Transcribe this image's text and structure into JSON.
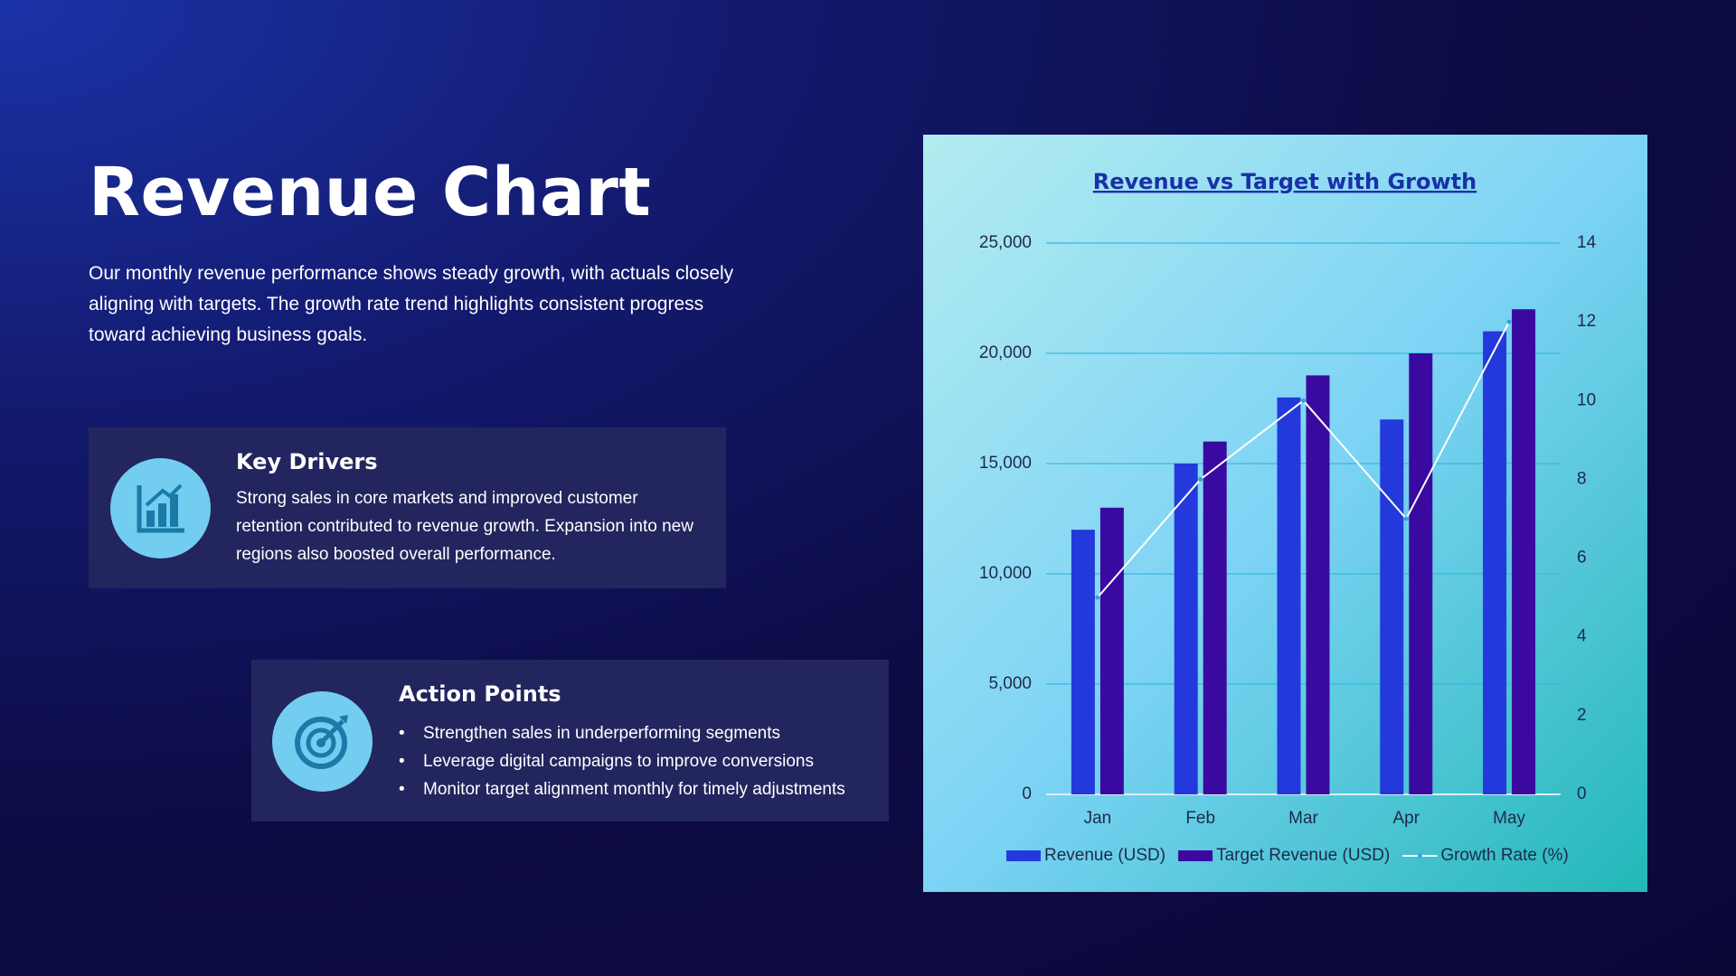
{
  "header": {
    "title": "Revenue Chart",
    "description": "Our monthly revenue performance shows steady growth, with actuals closely aligning with targets. The growth rate trend highlights consistent progress toward achieving business goals."
  },
  "cards": [
    {
      "title": "Key Drivers",
      "text": "Strong sales in core markets and improved customer retention contributed to revenue growth. Expansion into new regions also boosted overall performance."
    },
    {
      "title": "Action Points",
      "bullets": [
        "Strengthen sales in underperforming segments",
        "Leverage digital campaigns to improve conversions",
        "Monitor target alignment monthly for timely adjustments"
      ]
    }
  ],
  "chart_data": {
    "type": "bar",
    "title": "Revenue vs Target with Growth",
    "categories": [
      "Jan",
      "Feb",
      "Mar",
      "Apr",
      "May"
    ],
    "series": [
      {
        "name": "Revenue (USD)",
        "color": "#2339dc",
        "values": [
          12000,
          15000,
          18000,
          17000,
          21000
        ]
      },
      {
        "name": "Target Revenue (USD)",
        "color": "#3a0aa0",
        "values": [
          13000,
          16000,
          19000,
          20000,
          22000
        ]
      },
      {
        "name": "Growth Rate (%)",
        "color": "#ffffff",
        "type": "line",
        "axis": "y2",
        "values": [
          5,
          8,
          10,
          7,
          12
        ]
      }
    ],
    "ylim": [
      0,
      25000
    ],
    "yticks": [
      0,
      {
        "value": 5000,
        "label": "5,000"
      },
      {
        "value": 10000,
        "label": "10,000"
      },
      {
        "value": 15000,
        "label": "15,000"
      },
      {
        "value": 20000,
        "label": "20,000"
      },
      {
        "value": 25000,
        "label": "25,000"
      }
    ],
    "y2lim": [
      0,
      14
    ],
    "y2ticks": [
      0,
      2,
      4,
      6,
      8,
      10,
      12,
      14
    ],
    "grid": true,
    "legend": "bottom"
  }
}
